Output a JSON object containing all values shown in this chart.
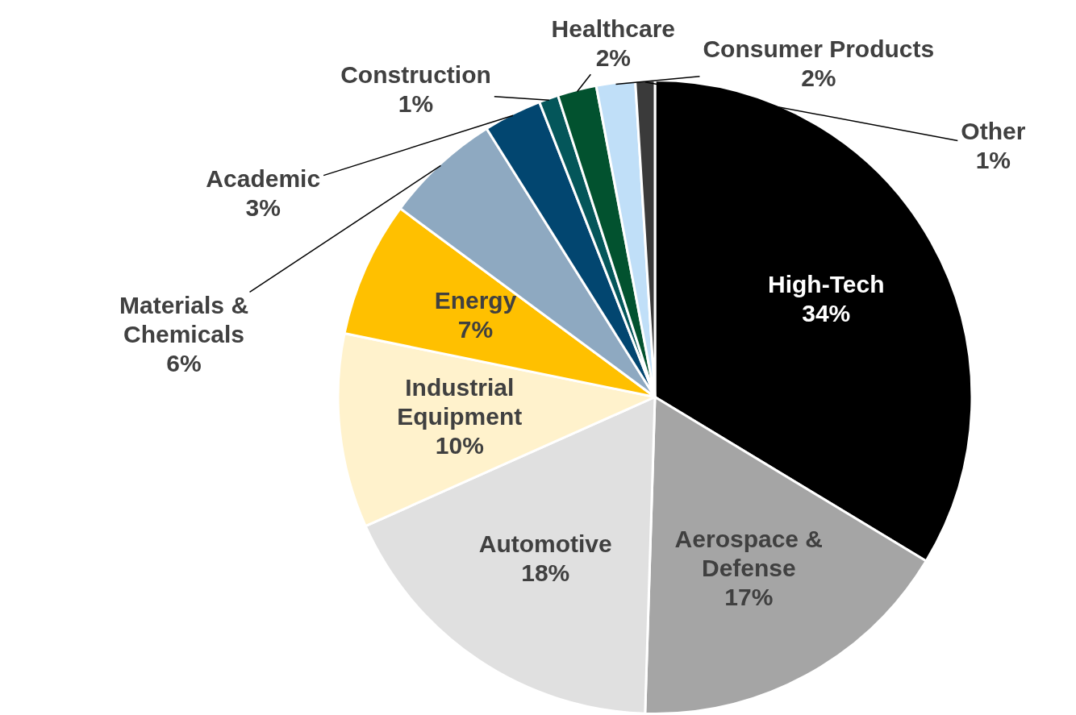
{
  "chart_data": {
    "type": "pie",
    "categories": [
      "High-Tech",
      "Aerospace & Defense",
      "Automotive",
      "Industrial Equipment",
      "Energy",
      "Materials & Chemicals",
      "Academic",
      "Construction",
      "Healthcare",
      "Consumer Products",
      "Other"
    ],
    "values": [
      34,
      17,
      18,
      10,
      7,
      6,
      3,
      1,
      2,
      2,
      1
    ],
    "value_labels": [
      "34%",
      "17%",
      "18%",
      "10%",
      "7%",
      "6%",
      "3%",
      "1%",
      "2%",
      "2%",
      "1%"
    ],
    "colors": [
      "#000000",
      "#a5a5a5",
      "#e0e0e0",
      "#fff2cc",
      "#ffc000",
      "#8ea9c1",
      "#024670",
      "#04565a",
      "#02522f",
      "#c0dff8",
      "#3a3a3a"
    ],
    "legend": false
  }
}
